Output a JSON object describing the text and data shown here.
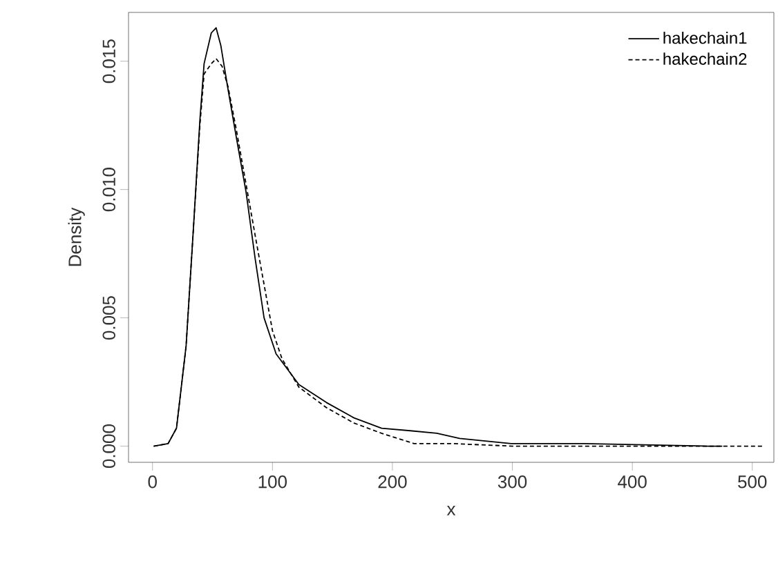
{
  "chart_data": {
    "type": "line",
    "xlabel": "x",
    "ylabel": "Density",
    "series": [
      {
        "name": "hakechain1",
        "color": "#000000",
        "line_style": "solid",
        "x": [
          1,
          13,
          20,
          28,
          34,
          39.5,
          43,
          49,
          53,
          57,
          62.6,
          70,
          78,
          85.6,
          93,
          103,
          122,
          145,
          168,
          191,
          215,
          237,
          256,
          299,
          360,
          463,
          468,
          475
        ],
        "values": [
          0,
          0.0001,
          0.0007,
          0.0039,
          0.0084,
          0.0127,
          0.0149,
          0.0161,
          0.0163,
          0.0156,
          0.014,
          0.012,
          0.0099,
          0.0073,
          0.005,
          0.0036,
          0.0024,
          0.0017,
          0.0011,
          0.0007,
          0.0006,
          0.0005,
          0.0003,
          0.0001,
          0.0001,
          0,
          0,
          0
        ]
      },
      {
        "name": "hakechain2",
        "color": "#000000",
        "line_style": "dashed",
        "x": [
          1,
          13,
          20,
          28,
          34,
          39.5,
          43,
          49,
          53,
          58,
          63,
          70,
          78,
          86,
          93,
          100,
          108,
          122,
          145,
          168,
          191,
          218,
          250,
          300,
          400,
          509
        ],
        "values": [
          0,
          0.0001,
          0.0007,
          0.0039,
          0.0084,
          0.0125,
          0.0145,
          0.0149,
          0.0151,
          0.0148,
          0.014,
          0.0123,
          0.0102,
          0.0081,
          0.0063,
          0.0045,
          0.0034,
          0.0023,
          0.0015,
          0.0009,
          0.0005,
          0.0001,
          0.0001,
          0,
          0,
          0
        ]
      }
    ],
    "xlim": [
      -20,
      518
    ],
    "ylim": [
      -0.00063,
      0.0169
    ],
    "xticks": [
      0,
      100,
      200,
      300,
      400,
      500
    ],
    "yticks": [
      {
        "value": 0,
        "label": "0.000"
      },
      {
        "value": 0.005,
        "label": "0.005"
      },
      {
        "value": 0.01,
        "label": "0.010"
      },
      {
        "value": 0.015,
        "label": "0.015"
      }
    ],
    "grid": false,
    "legend": "top right"
  }
}
